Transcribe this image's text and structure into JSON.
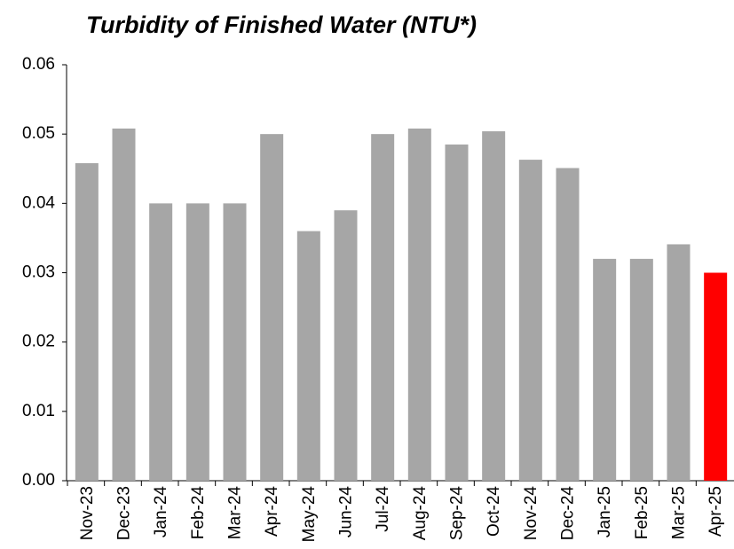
{
  "chart_data": {
    "type": "bar",
    "title": "Turbidity of Finished Water (NTU*)",
    "categories": [
      "Nov-23",
      "Dec-23",
      "Jan-24",
      "Feb-24",
      "Mar-24",
      "Apr-24",
      "May-24",
      "Jun-24",
      "Jul-24",
      "Aug-24",
      "Sep-24",
      "Oct-24",
      "Nov-24",
      "Dec-24",
      "Jan-25",
      "Feb-25",
      "Mar-25",
      "Apr-25"
    ],
    "values": [
      0.0458,
      0.0508,
      0.04,
      0.04,
      0.04,
      0.05,
      0.036,
      0.039,
      0.05,
      0.0508,
      0.0485,
      0.0504,
      0.0463,
      0.0451,
      0.032,
      0.032,
      0.0341,
      0.03
    ],
    "colors": [
      "#a6a6a6",
      "#a6a6a6",
      "#a6a6a6",
      "#a6a6a6",
      "#a6a6a6",
      "#a6a6a6",
      "#a6a6a6",
      "#a6a6a6",
      "#a6a6a6",
      "#a6a6a6",
      "#a6a6a6",
      "#a6a6a6",
      "#a6a6a6",
      "#a6a6a6",
      "#a6a6a6",
      "#a6a6a6",
      "#a6a6a6",
      "#ff0000"
    ],
    "ylim": [
      0,
      0.06
    ],
    "yticks": [
      {
        "value": 0,
        "label": "0.00"
      },
      0.01,
      0.02,
      0.03,
      0.04,
      0.05,
      0.06
    ],
    "grid": false
  }
}
